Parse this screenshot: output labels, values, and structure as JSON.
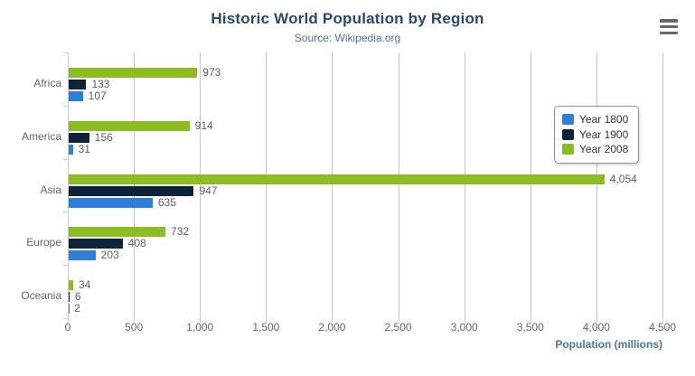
{
  "chart_data": {
    "type": "bar",
    "title": "Historic World Population by Region",
    "subtitle": "Source: Wikipedia.org",
    "categories": [
      "Africa",
      "America",
      "Asia",
      "Europe",
      "Oceania"
    ],
    "series": [
      {
        "name": "Year 1800",
        "color": "#2f7ed8",
        "values": [
          107,
          31,
          635,
          203,
          2
        ]
      },
      {
        "name": "Year 1900",
        "color": "#0d233a",
        "values": [
          133,
          156,
          947,
          408,
          6
        ]
      },
      {
        "name": "Year 2008",
        "color": "#8bbc21",
        "values": [
          973,
          914,
          4054,
          732,
          34
        ]
      }
    ],
    "bar_order_top_to_bottom": [
      "Year 2008",
      "Year 1900",
      "Year 1800"
    ],
    "xlabel": "Population (millions)",
    "ylabel": "",
    "xlim": [
      0,
      4500
    ],
    "x_ticks": [
      0,
      500,
      1000,
      1500,
      2000,
      2500,
      3000,
      3500,
      4000,
      4500
    ],
    "grid": "vertical gridlines every 500, no horizontal gridlines",
    "legend_position": "right floating box",
    "data_labels": "value shown at end of each bar with thousands separator"
  },
  "icons": {
    "export_menu": "hamburger-menu-icon"
  },
  "colors": {
    "title": "#274b6d",
    "subtitle": "#4d759e",
    "axis_title": "#4d759e",
    "axis_labels": "#666666",
    "data_labels": "#606060",
    "gridline": "#c5c5c5",
    "axis_line": "#c0d0e0",
    "legend_border": "#909090",
    "legend_text": "#333333",
    "export_icon": "#666666",
    "background": "#ffffff"
  }
}
